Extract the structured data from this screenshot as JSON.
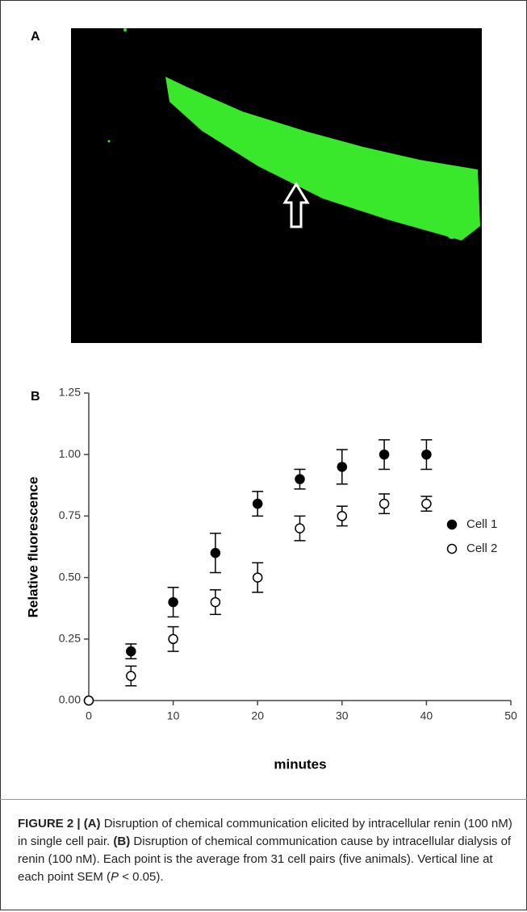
{
  "panel_a": {
    "label": "A"
  },
  "chart_data": {
    "type": "scatter",
    "panel_label": "B",
    "x_label": "minutes",
    "y_label": "Relative fluorescence",
    "xlim": [
      0,
      50
    ],
    "xticks": [
      0,
      10,
      20,
      30,
      40,
      50
    ],
    "ylim": [
      0,
      1.25
    ],
    "yticks": [
      {
        "value": 0,
        "label": "0.00"
      },
      {
        "value": 0.25,
        "label": "0.25"
      },
      {
        "value": 0.5,
        "label": "0.50"
      },
      {
        "value": 0.75,
        "label": "0.75"
      },
      {
        "value": 1,
        "label": "1.00"
      },
      {
        "value": 1.25,
        "label": "1.25"
      }
    ],
    "series": [
      {
        "name": "Cell 1",
        "color": "#000000",
        "marker": "filled",
        "x": [
          0,
          5,
          10,
          15,
          20,
          25,
          30,
          35,
          40
        ],
        "values": [
          0,
          0.2,
          0.4,
          0.6,
          0.8,
          0.9,
          0.95,
          1.0,
          1.0
        ],
        "errors": [
          0,
          0.03,
          0.06,
          0.08,
          0.05,
          0.04,
          0.07,
          0.06,
          0.06
        ]
      },
      {
        "name": "Cell 2",
        "color": "#000000",
        "marker": "open",
        "x": [
          0,
          5,
          10,
          15,
          20,
          25,
          30,
          35,
          40
        ],
        "values": [
          0,
          0.1,
          0.25,
          0.4,
          0.5,
          0.7,
          0.75,
          0.8,
          0.8
        ],
        "errors": [
          0,
          0.04,
          0.05,
          0.05,
          0.06,
          0.05,
          0.04,
          0.04,
          0.03
        ]
      }
    ]
  },
  "caption": [
    {
      "text": "FIGURE 2 | (A)",
      "style": "bold"
    },
    {
      "text": " Disruption of chemical communication elicited by intracellular renin (100 nM) in single cell pair. ",
      "style": "normal"
    },
    {
      "text": "(B)",
      "style": "bold"
    },
    {
      "text": " Disruption of chemical communication cause by intracellular dialysis of renin (100 nM). Each point is the average from 31 cell pairs (five animals). Vertical line at each point SEM (",
      "style": "normal"
    },
    {
      "text": "P",
      "style": "italic"
    },
    {
      "text": " < 0.05).",
      "style": "normal"
    }
  ]
}
